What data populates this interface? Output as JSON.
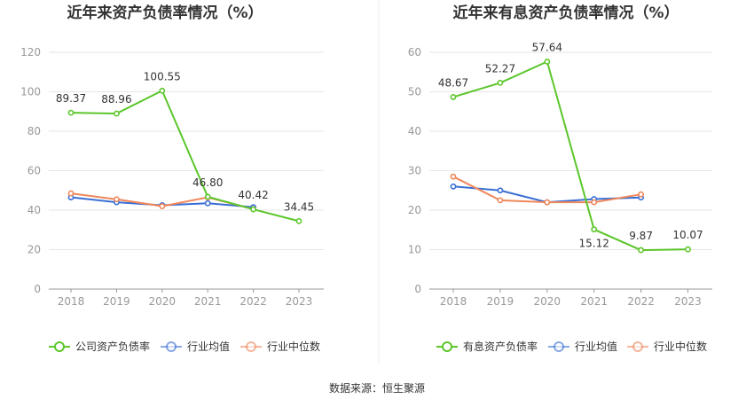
{
  "source": "数据来源：恒生聚源",
  "chart_data": [
    {
      "type": "line",
      "title": "近年来资产负债率情况（%）",
      "x": [
        "2018",
        "2019",
        "2020",
        "2021",
        "2022",
        "2023"
      ],
      "ylim": [
        0,
        120
      ],
      "yticks": [
        0,
        20,
        40,
        60,
        80,
        100,
        120
      ],
      "grid": true,
      "legend_position": "bottom",
      "series": [
        {
          "name": "公司资产负债率",
          "color": "#5cc62b",
          "values": [
            89.37,
            88.96,
            100.55,
            46.8,
            40.42,
            34.45
          ],
          "labels": [
            "89.37",
            "88.96",
            "100.55",
            "46.80",
            "40.42",
            "34.45"
          ]
        },
        {
          "name": "行业均值",
          "color": "#3b6fd4",
          "values": [
            46.5,
            44.0,
            42.5,
            43.5,
            41.5,
            null
          ]
        },
        {
          "name": "行业中位数",
          "color": "#f0875a",
          "values": [
            48.5,
            45.5,
            42.0,
            46.5,
            40.5,
            null
          ]
        }
      ]
    },
    {
      "type": "line",
      "title": "近年来有息资产负债率情况（%）",
      "x": [
        "2018",
        "2019",
        "2020",
        "2021",
        "2022",
        "2023"
      ],
      "ylim": [
        0,
        60
      ],
      "yticks": [
        0,
        10,
        20,
        30,
        40,
        50,
        60
      ],
      "grid": true,
      "legend_position": "bottom",
      "series": [
        {
          "name": "有息资产负债率",
          "color": "#5cc62b",
          "values": [
            48.67,
            52.27,
            57.64,
            15.12,
            9.87,
            10.07
          ],
          "labels": [
            "48.67",
            "52.27",
            "57.64",
            "15.12",
            "9.87",
            "10.07"
          ]
        },
        {
          "name": "行业均值",
          "color": "#3b6fd4",
          "values": [
            26.0,
            25.0,
            22.0,
            22.8,
            23.2,
            null
          ]
        },
        {
          "name": "行业中位数",
          "color": "#f0875a",
          "values": [
            28.5,
            22.5,
            22.0,
            22.0,
            24.0,
            null
          ]
        }
      ]
    }
  ]
}
